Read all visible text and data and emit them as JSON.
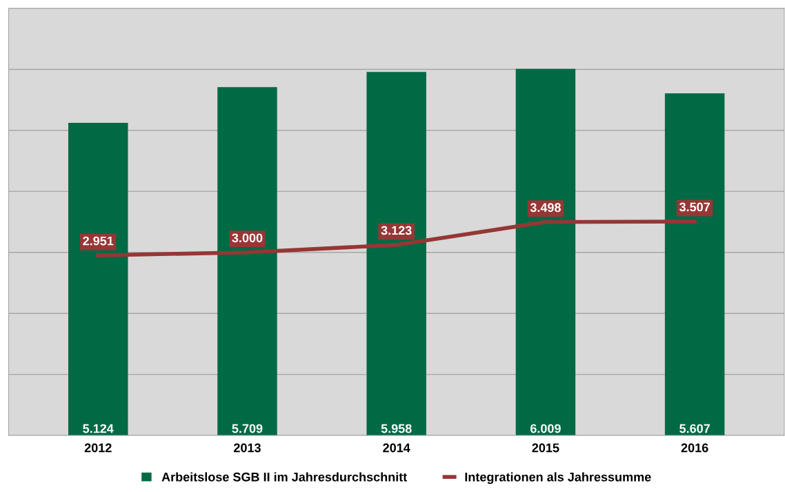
{
  "chart_data": {
    "type": "bar",
    "categories": [
      "2012",
      "2013",
      "2014",
      "2015",
      "2016"
    ],
    "series": [
      {
        "name": "Arbeitslose SGB II im Jahresdurchschnitt",
        "color": "#006a45",
        "values": [
          5124,
          5709,
          5958,
          6009,
          5607
        ],
        "value_labels": [
          "5.124",
          "5.709",
          "5.958",
          "6.009",
          "5.607"
        ]
      },
      {
        "name": "Integrationen als Jahressumme",
        "type": "line",
        "color": "#953735",
        "marker": "none",
        "line_style": "solid",
        "values": [
          2951,
          3000,
          3123,
          3498,
          3507
        ],
        "value_labels": [
          "2.951",
          "3.000",
          "3.123",
          "3.498",
          "3.507"
        ]
      }
    ],
    "ylim": [
      0,
      7000
    ],
    "yticks": [
      {
        "value": 0,
        "label": null
      },
      {
        "value": 1000,
        "label": null
      },
      {
        "value": 2000,
        "label": null
      },
      {
        "value": 3000,
        "label": null
      },
      {
        "value": 4000,
        "label": null
      },
      {
        "value": 5000,
        "label": null
      },
      {
        "value": 6000,
        "label": null
      },
      {
        "value": 7000,
        "label": null
      }
    ],
    "tick_labels": "x",
    "grid": "y",
    "legend": "bottom"
  }
}
